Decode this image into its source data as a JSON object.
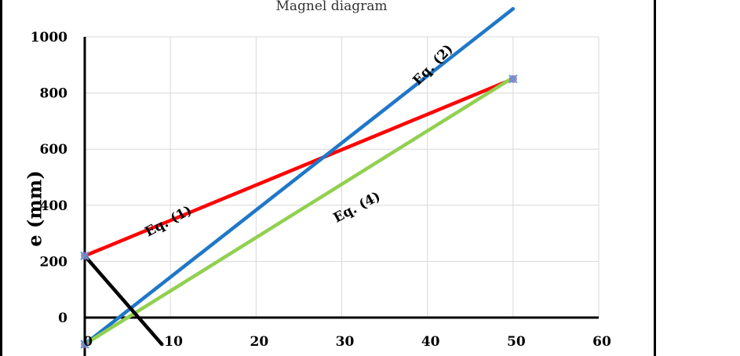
{
  "chart_data": {
    "type": "line",
    "title": "Magnel diagram",
    "xlabel": "",
    "ylabel": "e (mm)",
    "xlim": [
      0,
      60
    ],
    "ylim": [
      0,
      1000
    ],
    "xticks": [
      "0",
      "10",
      "20",
      "30",
      "40",
      "50",
      "60"
    ],
    "yticks": [
      "0",
      "200",
      "400",
      "600",
      "800",
      "1000"
    ],
    "grid": true,
    "series": [
      {
        "name": "Eq. (1)",
        "color": "#ff0000",
        "x": [
          0,
          50
        ],
        "y": [
          220,
          850
        ]
      },
      {
        "name": "Eq. (2)",
        "color": "#1f77c8",
        "x": [
          0,
          50
        ],
        "y": [
          -95,
          1100
        ]
      },
      {
        "name": "Eq. (4)",
        "color": "#92d050",
        "x": [
          0,
          50
        ],
        "y": [
          -95,
          855
        ]
      },
      {
        "name": "",
        "color": "#000000",
        "x": [
          0,
          9
        ],
        "y": [
          220,
          -95
        ]
      }
    ],
    "annotations": [
      {
        "text": "Eq. (1)",
        "x": 10,
        "y": 330,
        "angle": -28
      },
      {
        "text": "Eq. (2)",
        "x": 41,
        "y": 890,
        "angle": -46
      },
      {
        "text": "Eq. (4)",
        "x": 32,
        "y": 380,
        "angle": -28
      }
    ]
  }
}
